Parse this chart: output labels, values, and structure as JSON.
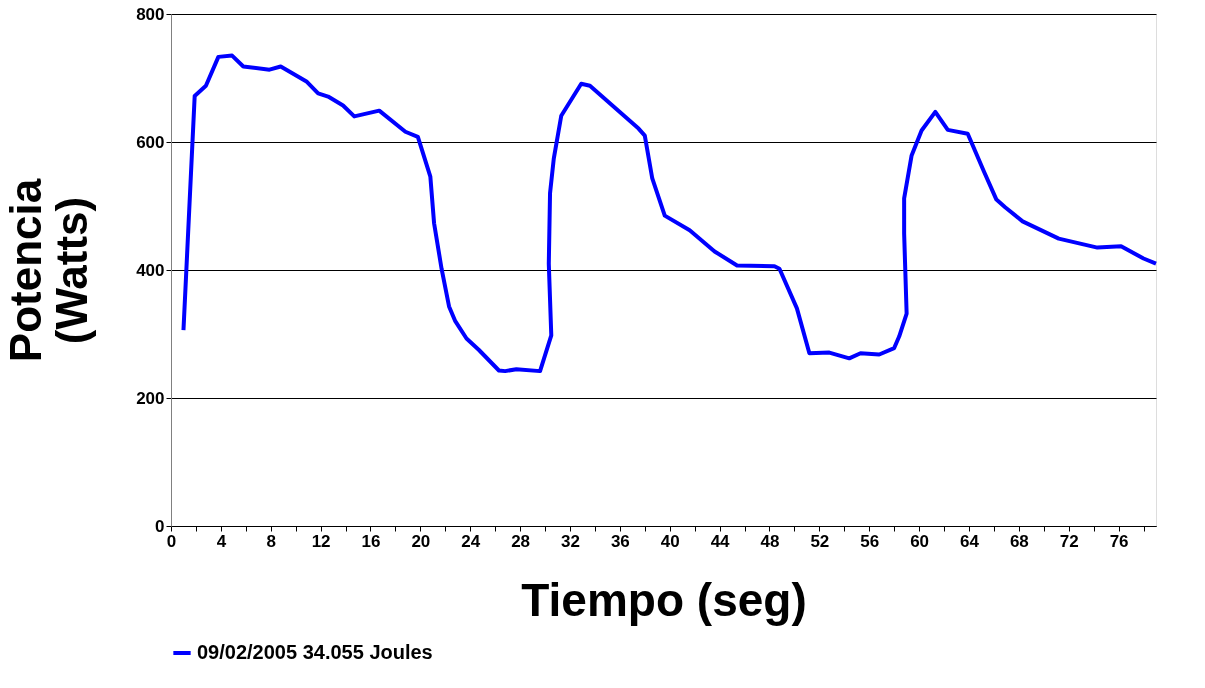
{
  "chart_data": {
    "type": "line",
    "xlabel": "Tiempo (seg)",
    "ylabel": "Potencia (Watts)",
    "xlim": [
      0,
      79
    ],
    "ylim": [
      0,
      800
    ],
    "yticks": [
      0,
      200,
      400,
      600,
      800
    ],
    "xticks": [
      0,
      {
        "value": 2,
        "label": null
      },
      4,
      {
        "value": 6,
        "label": null
      },
      8,
      {
        "value": 10,
        "label": null
      },
      12,
      {
        "value": 14,
        "label": null
      },
      16,
      {
        "value": 18,
        "label": null
      },
      20,
      {
        "value": 22,
        "label": null
      },
      24,
      {
        "value": 26,
        "label": null
      },
      28,
      {
        "value": 30,
        "label": null
      },
      32,
      {
        "value": 34,
        "label": null
      },
      36,
      {
        "value": 38,
        "label": null
      },
      40,
      {
        "value": 42,
        "label": null
      },
      44,
      {
        "value": 46,
        "label": null
      },
      48,
      {
        "value": 50,
        "label": null
      },
      52,
      {
        "value": 54,
        "label": null
      },
      56,
      {
        "value": 58,
        "label": null
      },
      60,
      {
        "value": 62,
        "label": null
      },
      64,
      {
        "value": 66,
        "label": null
      },
      68,
      {
        "value": 70,
        "label": null
      },
      72,
      {
        "value": 74,
        "label": null
      },
      76,
      {
        "value": 78,
        "label": null
      }
    ],
    "grid": "y",
    "legend": "bottom",
    "marker": "none",
    "line_style": "solid",
    "series": [
      {
        "name": "09/02/2005 34.055 Joules",
        "color": "#0000ff",
        "x": [
          1,
          1.9,
          2.8,
          3.8,
          4.9,
          5.8,
          7.9,
          8.8,
          10.9,
          11.8,
          12.6,
          13.8,
          14.7,
          16.7,
          18.8,
          19.8,
          20.8,
          21.1,
          21.7,
          22.3,
          22.8,
          23.7,
          24.7,
          26.3,
          26.8,
          27.7,
          29.6,
          30.5,
          30.3,
          30.4,
          30.7,
          31.3,
          32.9,
          33.6,
          35.4,
          37.5,
          38,
          38.6,
          39.6,
          41.6,
          43.6,
          45.4,
          48.4,
          48.8,
          50.2,
          51.2,
          52.8,
          54.4,
          55.3,
          56.8,
          58,
          58.4,
          59,
          58.8,
          58.8,
          59.4,
          60.2,
          61.3,
          62.3,
          63.9,
          65.2,
          66.2,
          66.9,
          68.3,
          71.2,
          74.3,
          76.2,
          78,
          79
        ],
        "values": [
          306,
          672,
          688,
          733,
          735,
          718,
          713,
          718,
          694,
          676,
          671,
          657,
          640,
          649,
          616,
          608,
          546,
          473,
          402,
          343,
          320,
          293,
          275,
          243,
          242,
          245,
          242,
          298,
          410,
          520,
          574,
          641,
          691,
          688,
          657,
          621,
          610,
          543,
          485,
          462,
          429,
          407,
          406,
          402,
          340,
          270,
          271,
          262,
          270,
          268,
          278,
          296,
          332,
          457,
          512,
          579,
          618,
          647,
          619,
          613,
          554,
          510,
          498,
          476,
          449,
          435,
          437,
          418,
          410
        ]
      }
    ]
  }
}
